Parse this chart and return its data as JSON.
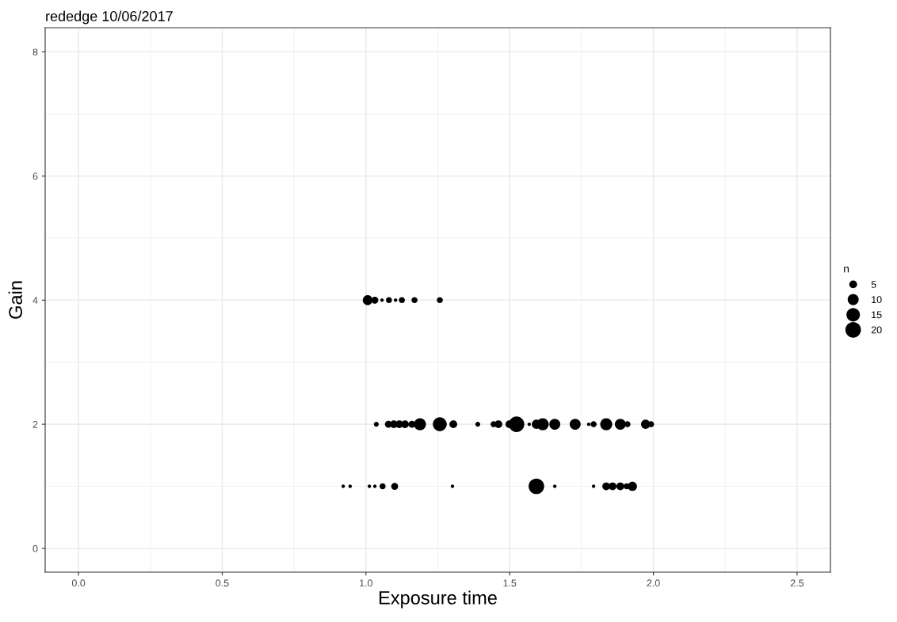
{
  "chart_data": {
    "type": "bubble",
    "title": "rededge 10/06/2017",
    "xlabel": "Exposure time",
    "ylabel": "Gain",
    "legend_title": "n",
    "grid": true,
    "xlim": [
      -0.116,
      2.616
    ],
    "ylim": [
      -0.383,
      8.39
    ],
    "xticks": [
      {
        "value": 0,
        "label": "0.0"
      },
      {
        "value": 0.5,
        "label": "0.5"
      },
      {
        "value": 1,
        "label": "1.0"
      },
      {
        "value": 1.5,
        "label": "1.5"
      },
      {
        "value": 2,
        "label": "2.0"
      },
      {
        "value": 2.5,
        "label": "2.5"
      }
    ],
    "yticks": [
      0,
      2,
      4,
      6,
      8
    ],
    "size_legend": [
      5,
      10,
      15,
      20
    ],
    "series": [
      {
        "color": "#000000",
        "x": [
          1.006,
          1.031,
          1.056,
          1.08,
          1.103,
          1.125,
          1.169,
          1.257,
          1.036,
          1.078,
          1.097,
          1.116,
          1.136,
          1.16,
          1.188,
          1.257,
          1.304,
          1.389,
          1.444,
          1.461,
          1.499,
          1.524,
          1.568,
          1.593,
          1.615,
          1.657,
          1.728,
          1.775,
          1.792,
          1.836,
          1.885,
          1.91,
          1.973,
          1.992,
          0.921,
          0.945,
          1.012,
          1.031,
          1.058,
          1.1,
          1.301,
          1.593,
          1.657,
          1.792,
          1.836,
          1.858,
          1.885,
          1.907,
          1.927
        ],
        "values": [
          4,
          4,
          4,
          4,
          4,
          4,
          4,
          4,
          2,
          2,
          2,
          2,
          2,
          2,
          2,
          2,
          2,
          2,
          2,
          2,
          2,
          2,
          2,
          2,
          2,
          2,
          2,
          2,
          2,
          2,
          2,
          2,
          2,
          2,
          1,
          1,
          1,
          1,
          1,
          1,
          1,
          1,
          1,
          1,
          1,
          1,
          1,
          1,
          1
        ],
        "sizes": [
          8,
          4,
          1,
          3,
          1,
          3,
          3,
          3,
          2,
          4,
          5,
          5,
          5,
          4,
          12,
          16,
          5,
          2,
          3,
          5,
          5,
          20,
          1,
          7,
          12,
          10,
          10,
          1,
          3,
          12,
          10,
          3,
          7,
          3,
          1,
          1,
          1,
          1,
          3,
          4,
          1,
          20,
          1,
          1,
          5,
          5,
          5,
          3,
          7
        ]
      }
    ]
  }
}
